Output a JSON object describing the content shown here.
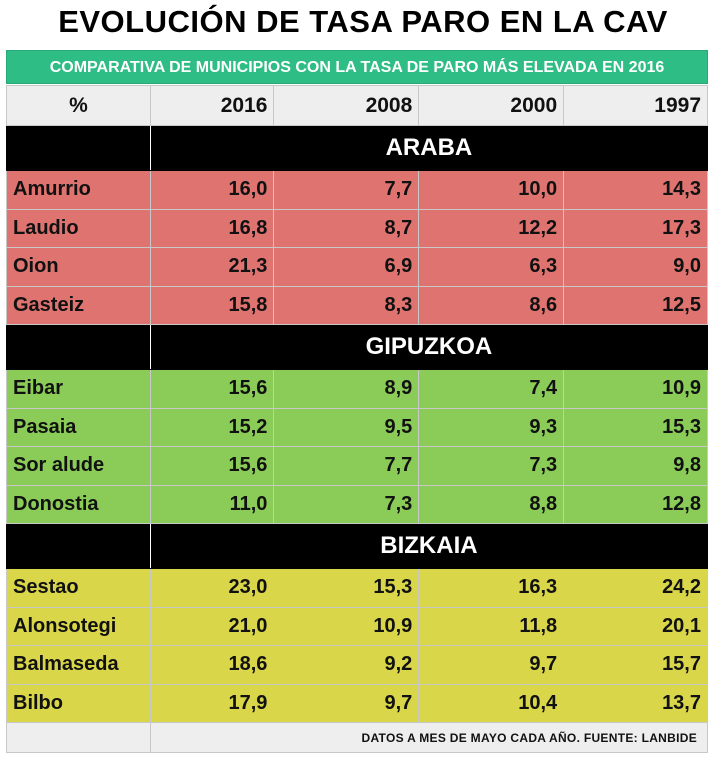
{
  "title": "EVOLUCIÓN DE TASA PARO EN LA CAV",
  "subtitle": "COMPARATIVA DE MUNICIPIOS CON LA TASA DE PARO MÁS ELEVADA EN 2016",
  "header": {
    "label": "%",
    "years": [
      "2016",
      "2008",
      "2000",
      "1997"
    ]
  },
  "sections": [
    {
      "name": "ARABA",
      "rows": [
        {
          "municipio": "Amurrio",
          "values": [
            "16,0",
            "7,7",
            "10,0",
            "14,3"
          ]
        },
        {
          "municipio": "Laudio",
          "values": [
            "16,8",
            "8,7",
            "12,2",
            "17,3"
          ]
        },
        {
          "municipio": "Oion",
          "values": [
            "21,3",
            "6,9",
            "6,3",
            "9,0"
          ]
        },
        {
          "municipio": "Gasteiz",
          "values": [
            "15,8",
            "8,3",
            "8,6",
            "12,5"
          ]
        }
      ]
    },
    {
      "name": "GIPUZKOA",
      "rows": [
        {
          "municipio": "Eibar",
          "values": [
            "15,6",
            "8,9",
            "7,4",
            "10,9"
          ]
        },
        {
          "municipio": "Pasaia",
          "values": [
            "15,2",
            "9,5",
            "9,3",
            "15,3"
          ]
        },
        {
          "municipio": "Sor alude",
          "values": [
            "15,6",
            "7,7",
            "7,3",
            "9,8"
          ]
        },
        {
          "municipio": "Donostia",
          "values": [
            "11,0",
            "7,3",
            "8,8",
            "12,8"
          ]
        }
      ]
    },
    {
      "name": "BIZKAIA",
      "rows": [
        {
          "municipio": "Sestao",
          "values": [
            "23,0",
            "15,3",
            "16,3",
            "24,2"
          ]
        },
        {
          "municipio": "Alonsotegi",
          "values": [
            "21,0",
            "10,9",
            "11,8",
            "20,1"
          ]
        },
        {
          "municipio": "Balmaseda",
          "values": [
            "18,6",
            "9,2",
            "9,7",
            "15,7"
          ]
        },
        {
          "municipio": "Bilbo",
          "values": [
            "17,9",
            "9,7",
            "10,4",
            "13,7"
          ]
        }
      ]
    }
  ],
  "footer": "DATOS A MES DE MAYO CADA AÑO. FUENTE: LANBIDE",
  "colors": {
    "araba": "#de7370",
    "gipuzkoa": "#8bcc58",
    "bizkaia": "#d9d64a",
    "subtitle_bg": "#2fbd86"
  }
}
